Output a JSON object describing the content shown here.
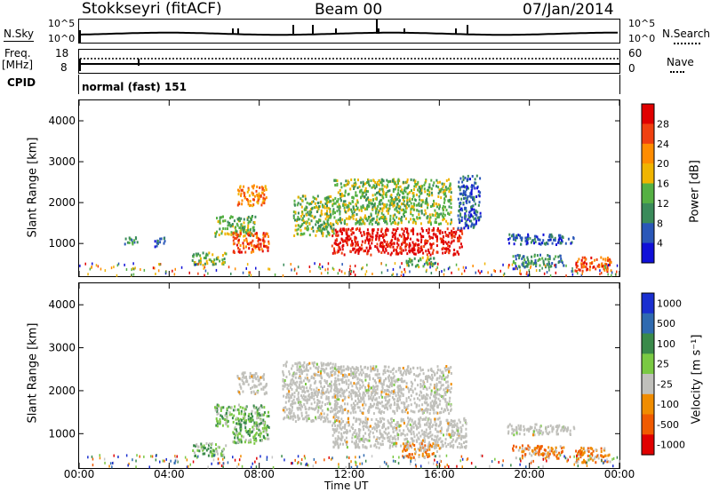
{
  "header": {
    "station": "Stokkseyri (fitACF)",
    "beam": "Beam 00",
    "date": "07/Jan/2014"
  },
  "strips": {
    "nsky_label": "N.Sky",
    "nsky_top": "10^5",
    "nsky_bottom": "10^0",
    "nsearch_label": "N.Search",
    "nsearch_top": "10^5",
    "nsearch_bottom": "10^0",
    "freq_label": "Freq.",
    "freq_unit": "[MHz]",
    "freq_top": "18",
    "freq_bottom": "8",
    "nave_label": "Nave",
    "nave_top": "60",
    "nave_bottom": "0",
    "cpid_label": "CPID",
    "cpid_value": "normal (fast) 151"
  },
  "colors": {
    "power": [
      "#1010d8",
      "#2a57b8",
      "#3a8b5a",
      "#55b043",
      "#f0b400",
      "#ff8c00",
      "#f04010",
      "#e00000"
    ],
    "velocity": [
      "#1a2fd0",
      "#2f6ab0",
      "#3a8a4a",
      "#7ac943",
      "#c8c8c8",
      "#f08c00",
      "#f05a00",
      "#e00000"
    ],
    "ground_scatter": "#c0c0bb"
  },
  "chart_data": [
    {
      "type": "heatmap",
      "name": "power",
      "ylabel": "Slant Range [km]",
      "yticks": [
        "1000",
        "2000",
        "3000",
        "4000"
      ],
      "ylim": [
        200,
        4500
      ],
      "xticks": [
        "00:00",
        "04:00",
        "08:00",
        "12:00",
        "16:00",
        "20:00",
        "00:00"
      ],
      "colorbar_label": "Power [dB]",
      "colorbar_ticks": [
        "4",
        "8",
        "12",
        "16",
        "20",
        "24",
        "28"
      ],
      "regions": [
        {
          "t0": 2.0,
          "t1": 2.6,
          "r0": 1000,
          "r1": 1200,
          "level": 2
        },
        {
          "t0": 3.3,
          "t1": 3.8,
          "r0": 950,
          "r1": 1180,
          "level": 1
        },
        {
          "t0": 5.0,
          "t1": 6.5,
          "r0": 500,
          "r1": 800,
          "level": 3
        },
        {
          "t0": 6.0,
          "t1": 7.8,
          "r0": 1200,
          "r1": 1700,
          "level": 3
        },
        {
          "t0": 6.8,
          "t1": 8.4,
          "r0": 800,
          "r1": 1300,
          "level": 6
        },
        {
          "t0": 7.0,
          "t1": 8.3,
          "r0": 1950,
          "r1": 2450,
          "level": 5
        },
        {
          "t0": 9.5,
          "t1": 11.3,
          "r0": 1200,
          "r1": 2200,
          "level": 3
        },
        {
          "t0": 11.2,
          "t1": 17.0,
          "r0": 750,
          "r1": 1400,
          "level": 7
        },
        {
          "t0": 11.3,
          "t1": 16.5,
          "r0": 1500,
          "r1": 2600,
          "level": 3
        },
        {
          "t0": 14.5,
          "t1": 15.8,
          "r0": 450,
          "r1": 700,
          "level": 3
        },
        {
          "t0": 16.8,
          "t1": 17.8,
          "r0": 1400,
          "r1": 2700,
          "level": 1
        },
        {
          "t0": 19.0,
          "t1": 22.0,
          "r0": 1000,
          "r1": 1250,
          "level": 1
        },
        {
          "t0": 19.2,
          "t1": 21.5,
          "r0": 450,
          "r1": 750,
          "level": 2
        },
        {
          "t0": 22.0,
          "t1": 23.6,
          "r0": 350,
          "r1": 700,
          "level": 6
        }
      ]
    },
    {
      "type": "heatmap",
      "name": "velocity",
      "ylabel": "Slant Range [km]",
      "yticks": [
        "1000",
        "2000",
        "3000",
        "4000"
      ],
      "ylim": [
        200,
        4500
      ],
      "xlabel": "Time UT",
      "xticks": [
        "00:00",
        "04:00",
        "08:00",
        "12:00",
        "16:00",
        "20:00",
        "00:00"
      ],
      "colorbar_label": "Velocity [m s⁻¹]",
      "colorbar_ticks": [
        "1000",
        "500",
        "100",
        "25",
        "-25",
        "-100",
        "-500",
        "-1000"
      ],
      "regions": [
        {
          "t0": 5.0,
          "t1": 6.5,
          "r0": 500,
          "r1": 800,
          "level": 3
        },
        {
          "t0": 6.0,
          "t1": 8.4,
          "r0": 1200,
          "r1": 1700,
          "level": 3
        },
        {
          "t0": 6.8,
          "t1": 8.4,
          "r0": 800,
          "r1": 1300,
          "level": 3
        },
        {
          "t0": 7.0,
          "t1": 8.3,
          "r0": 1950,
          "r1": 2450,
          "level": 4
        },
        {
          "t0": 9.0,
          "t1": 11.5,
          "r0": 1300,
          "r1": 2700,
          "level": 4
        },
        {
          "t0": 11.2,
          "t1": 17.2,
          "r0": 700,
          "r1": 1400,
          "level": 4
        },
        {
          "t0": 11.3,
          "t1": 16.5,
          "r0": 1500,
          "r1": 2600,
          "level": 4
        },
        {
          "t0": 14.3,
          "t1": 16.0,
          "r0": 450,
          "r1": 800,
          "level": 5
        },
        {
          "t0": 19.0,
          "t1": 22.0,
          "r0": 1000,
          "r1": 1250,
          "level": 4
        },
        {
          "t0": 19.2,
          "t1": 21.5,
          "r0": 450,
          "r1": 750,
          "level": 5
        },
        {
          "t0": 22.0,
          "t1": 23.6,
          "r0": 350,
          "r1": 700,
          "level": 5
        }
      ]
    }
  ]
}
